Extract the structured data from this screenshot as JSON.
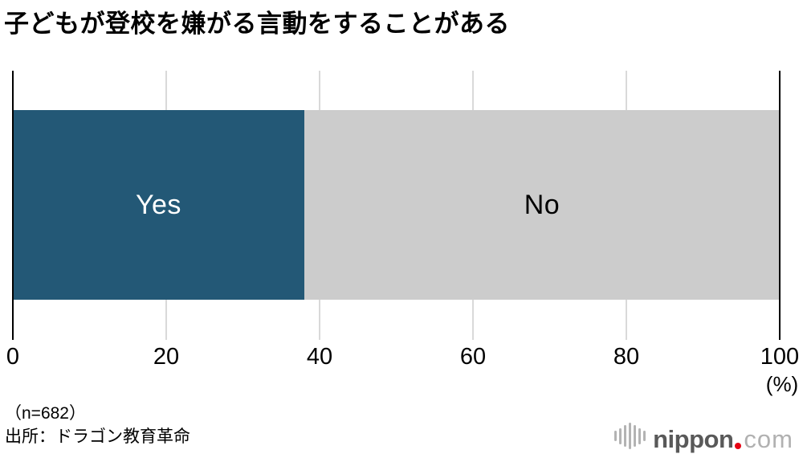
{
  "title": "子どもが登校を嫌がる言動をすることがある",
  "chart_data": {
    "type": "bar",
    "orientation": "horizontal-stacked",
    "title": "子どもが登校を嫌がる言動をすることがある",
    "categories": [
      "Yes",
      "No"
    ],
    "values": [
      38,
      62
    ],
    "unit": "(%)",
    "xlim": [
      0,
      100
    ],
    "xticks": [
      0,
      20,
      40,
      60,
      80,
      100
    ],
    "grid": "vertical-only",
    "colors": [
      "#235876",
      "#cccccc"
    ],
    "label_colors": [
      "#ffffff",
      "#000000"
    ],
    "gridline_color": "#d9d9d9",
    "axis_line_color": "#000000"
  },
  "footer": {
    "sample_size": "（n=682）",
    "source": "出所：ドラゴン教育革命"
  },
  "logo": {
    "icon": "soundwave-icon",
    "brand_bold": "nippon",
    "brand_light": "com",
    "dot_color": "#e60012",
    "brand_bold_color": "#595959",
    "brand_light_color": "#b1b1b1"
  }
}
